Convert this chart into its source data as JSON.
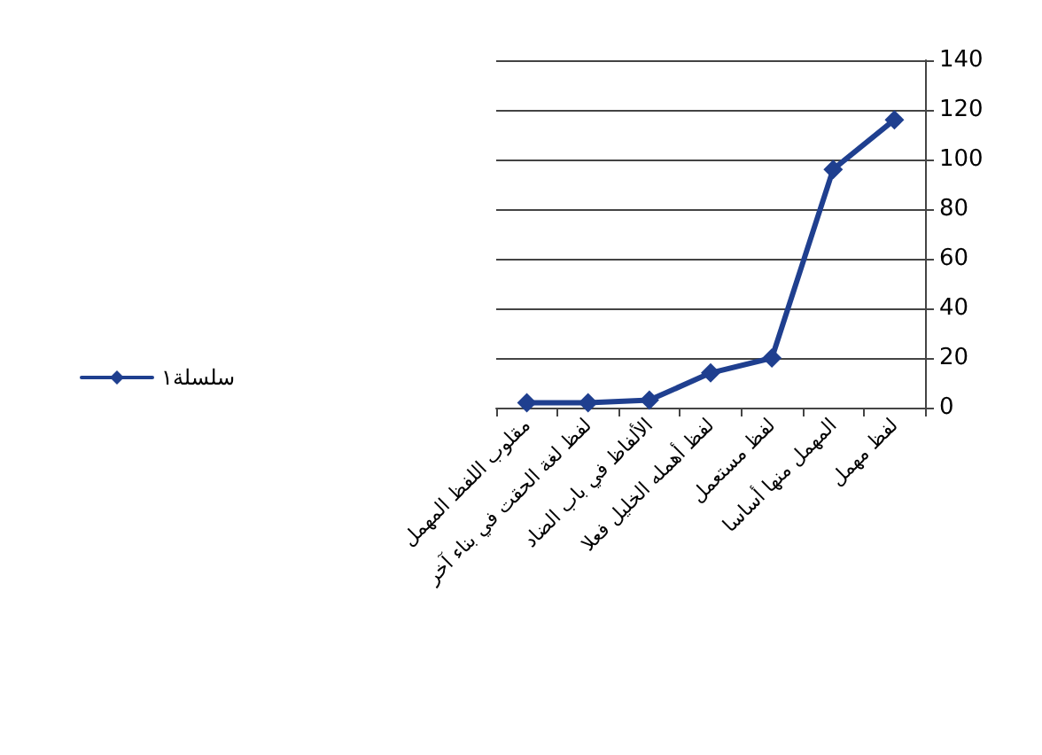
{
  "chart_data": {
    "type": "line",
    "categories": [
      "مقلوب اللفظ المهمل",
      "لفظ لغة الحقت في بناء آخر",
      "الألفاظ في باب الضاد",
      "لفظ أهمله الخليل فعلا",
      "لفظ مستعمل",
      "المهمل منها أساسا",
      "لفظ مهمل"
    ],
    "series": [
      {
        "name": "سلسلة١",
        "color": "#1f3f8f",
        "values": [
          2,
          2,
          3,
          14,
          20,
          96,
          116
        ]
      }
    ],
    "ylim": [
      0,
      140
    ],
    "yticks": [
      0,
      20,
      40,
      60,
      80,
      100,
      120,
      140
    ],
    "grid": "y",
    "legend": "left",
    "marker": "diamond",
    "line_style": "solid"
  }
}
